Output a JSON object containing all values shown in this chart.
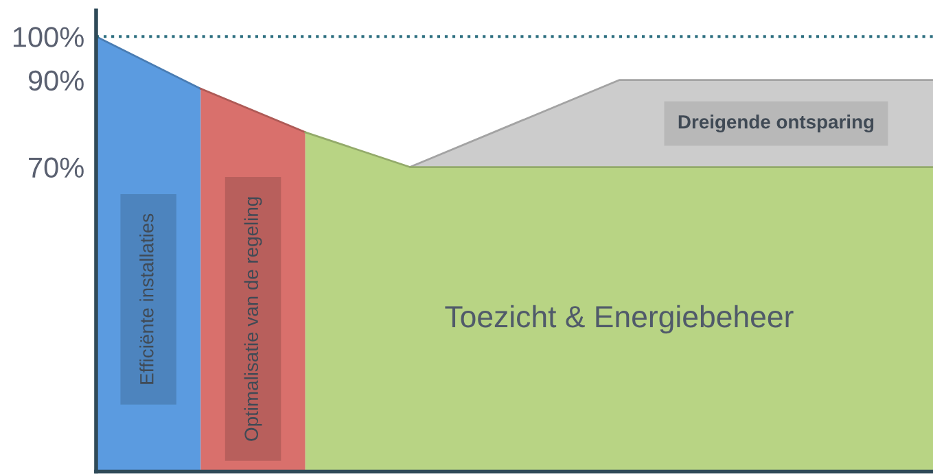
{
  "chart_data": {
    "type": "area",
    "categories": [
      null,
      null,
      null,
      null,
      null,
      null,
      null,
      null,
      null
    ],
    "series": [
      {
        "name": "Efficiënte installaties",
        "color": "#5b9be0",
        "values": [
          100,
          88,
          null,
          null,
          null,
          null,
          null,
          null,
          null
        ]
      },
      {
        "name": "Optimalisatie van de regeling",
        "color": "#d9706c",
        "values": [
          null,
          88,
          78,
          null,
          null,
          null,
          null,
          null,
          null
        ]
      },
      {
        "name": "Dreigende ontsparing",
        "color": "#cccccc",
        "values": [
          null,
          null,
          null,
          70,
          80,
          90,
          90,
          90,
          90
        ]
      },
      {
        "name": "Toezicht & Energiebeheer",
        "color": "#b8d484",
        "values": [
          null,
          null,
          78,
          70,
          70,
          70,
          70,
          70,
          70
        ]
      }
    ],
    "ylim": [
      0,
      106
    ],
    "yticks": [
      {
        "value": 100,
        "label": "100%"
      },
      {
        "value": 90,
        "label": "90%"
      },
      {
        "value": 70,
        "label": "70%"
      }
    ],
    "tick_labels": "y",
    "grid": false,
    "legend": false,
    "ref_lines": [
      {
        "axis": "y",
        "value": 100,
        "color": "#2e6f80",
        "line_style": "dotted"
      }
    ]
  }
}
